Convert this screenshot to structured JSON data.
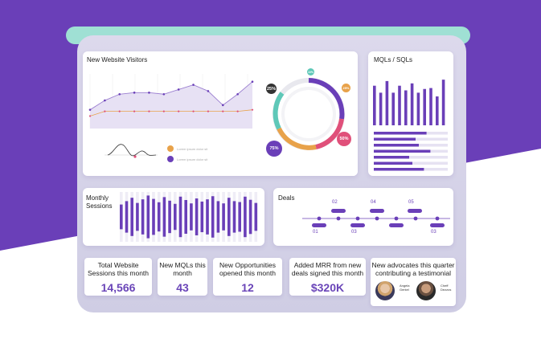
{
  "colors": {
    "purple": "#6a3fb8",
    "mint": "#9fe0d4",
    "accent_orange": "#e8a24a",
    "accent_red": "#e0507a",
    "accent_teal": "#5ec8b8"
  },
  "visitors": {
    "title": "New Website Visitors",
    "chart_data": {
      "type": "area",
      "series": [
        {
          "values": [
            12,
            18,
            22,
            23,
            23,
            22,
            25,
            28,
            24,
            15,
            22,
            30
          ]
        },
        {
          "values": [
            0,
            3,
            3,
            3,
            3,
            3,
            3,
            3,
            3,
            3,
            3,
            4
          ]
        }
      ]
    },
    "legend_placeholder": "Lorem ipsum dolor sit"
  },
  "donut": {
    "badges": [
      "25%",
      "75%",
      "50%",
      "25%",
      "10%"
    ]
  },
  "mqls": {
    "title": "MQLs / SQLs",
    "chart_data": {
      "type": "bar",
      "bars": [
        0.85,
        0.7,
        0.95,
        0.7,
        0.85,
        0.75,
        0.9,
        0.7,
        0.78,
        0.8,
        0.62,
        0.98
      ],
      "hbars": [
        0.82,
        0.65,
        0.7,
        0.88,
        0.55,
        0.6,
        0.78,
        0.72
      ]
    }
  },
  "sessions": {
    "title": "Monthly Sessions",
    "chart_data": {
      "type": "bar",
      "values": [
        0.55,
        0.7,
        0.85,
        0.62,
        0.78,
        0.95,
        0.8,
        0.65,
        0.88,
        0.72,
        0.58,
        0.9,
        0.75,
        0.6,
        0.82,
        0.68,
        0.78,
        0.92,
        0.7,
        0.6,
        0.85,
        0.7,
        0.66,
        0.9,
        0.76,
        0.62
      ]
    }
  },
  "deals": {
    "title": "Deals",
    "top_labels": [
      "02",
      "04",
      "05"
    ],
    "bottom_labels": [
      "01",
      "03",
      "03"
    ]
  },
  "metrics": [
    {
      "label": "Total Website Sessions this month",
      "value": "14,566"
    },
    {
      "label": "New MQLs this month",
      "value": "43"
    },
    {
      "label": "New Opportunities opened this month",
      "value": "12"
    },
    {
      "label": "Added MRR from new deals signed this month",
      "value": "$320K"
    }
  ],
  "advocates": {
    "title": "New advocates this quarter contributing a testimonial",
    "people": [
      {
        "name": "Angela Gerkel"
      },
      {
        "name": "Cheff Dezzos"
      }
    ]
  }
}
